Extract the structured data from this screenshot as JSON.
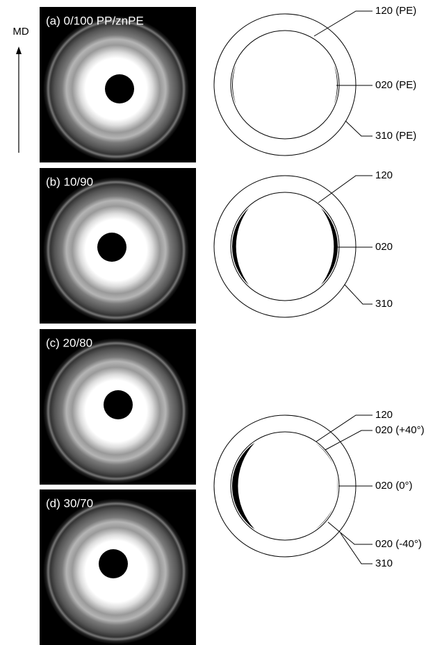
{
  "axis_label": "MD",
  "panels": [
    {
      "label": "(a) 0/100 PP/znPE"
    },
    {
      "label": "(b) 10/90"
    },
    {
      "label": "(c) 20/80"
    },
    {
      "label": "(d) 30/70"
    }
  ],
  "schematics": [
    {
      "labels": [
        "120 (PE)",
        "020 (PE)",
        "310 (PE)"
      ]
    },
    {
      "labels": [
        "120",
        "020",
        "310"
      ]
    },
    {
      "labels": [
        "120",
        "020 (+40°)",
        "020 (0°)",
        "020 (-40°)",
        "310"
      ]
    }
  ]
}
